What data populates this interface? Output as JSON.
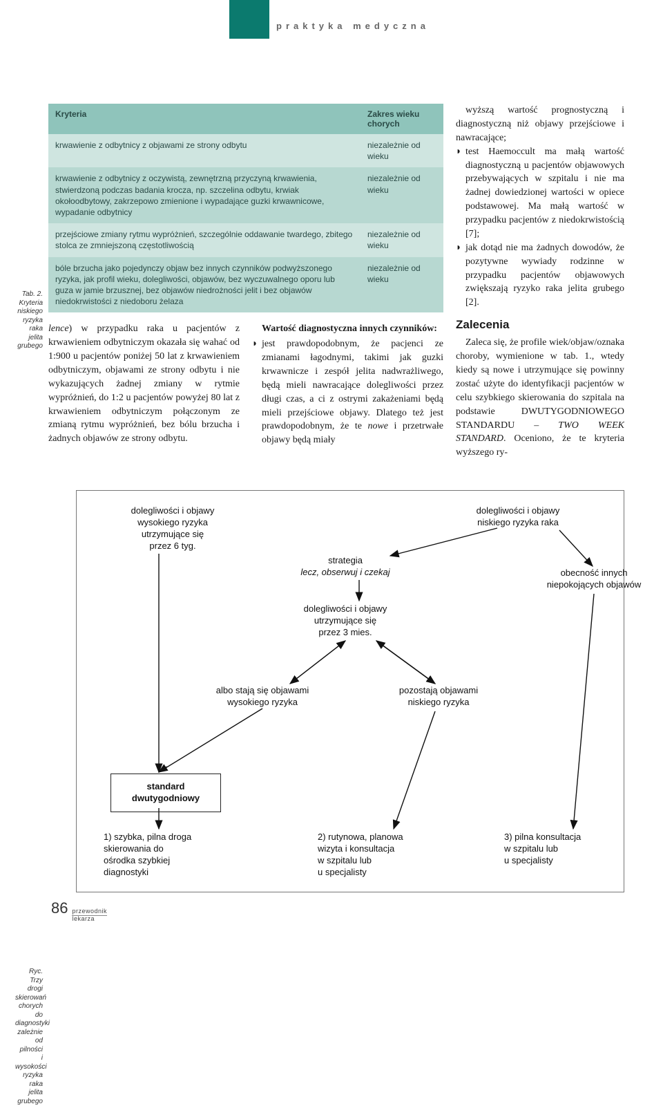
{
  "header": {
    "section_label": "praktyka medyczna"
  },
  "side_labels": {
    "tab2": "Tab. 2.\nKryteria\nniskiego\nryzyka\nraka\njelita\ngrubego",
    "ryc": "Ryc.\nTrzy drogi\nskierowań\nchorych do\ndiagnostyki\nzależnie\nod pilności\ni wysokości\nryzyka raka\njelita grubego"
  },
  "table": {
    "header_left": "Kryteria",
    "header_right": "Zakres wieku chorych",
    "value_common": "niezależnie od wieku",
    "rows": [
      "krwawienie z odbytnicy z objawami ze strony odbytu",
      "krwawienie z odbytnicy z oczywistą, zewnętrzną przyczyną krwawienia, stwierdzoną podczas badania krocza, np. szczelina odbytu, krwiak okołoodbytowy, zakrzepowo zmienione i wypadające guzki krwawnicowe, wypadanie odbytnicy",
      "przejściowe zmiany rytmu wypróżnień, szczególnie oddawanie twardego, zbitego stolca ze zmniejszoną częstotliwością",
      "bóle brzucha jako pojedynczy objaw bez innych czynników podwyższonego ryzyka, jak profil wieku, dolegliwości, objawów, bez wyczuwalnego oporu lub guza w jamie brzusznej, bez objawów niedrożności jelit i bez objawów niedokrwistości z niedoboru żelaza"
    ]
  },
  "cols": {
    "left": "lence) w przypadku raka u pacjentów z krwawieniem odbytniczym okazała się wahać od 1:900 u pacjentów poniżej 50 lat z krwawieniem odbytniczym, objawami ze strony odbytu i nie wykazujących żadnej zmiany w rytmie wypróżnień, do 1:2 u pacjentów powyżej 80 lat z krwawieniem odbytniczym połączonym ze zmianą rytmu wypróżnień, bez bólu brzucha i żadnych objawów ze strony odbytu.",
    "mid_head": "Wartość diagnostyczna innych czynników:",
    "mid_bullet": "jest prawdopodobnym, że pacjenci ze zmianami łagodnymi, takimi jak guzki krwawnicze i zespół jelita nadwrażliwego, będą mieli nawracające dolegliwości przez długi czas, a ci z ostrymi zakażeniami będą mieli przejściowe objawy. Dlatego też jest prawdopodobnym, że te nowe i przetrwałe objawy będą miały"
  },
  "side": {
    "para_top": "wyższą wartość prognostyczną i diagnostyczną niż objawy przejściowe i nawracające;",
    "b1": "test Haemoccult ma małą wartość diagnostyczną u pacjentów objawowych przebywających w szpitalu i nie ma żadnej dowiedzionej wartości w opiece podstawowej. Ma małą wartość w przypadku pacjentów z niedokrwistością [7];",
    "b2": "jak dotąd nie ma żadnych dowodów, że pozytywne wywiady rodzinne w przypadku pacjentów objawowych zwiększają ryzyko raka jelita grubego [2].",
    "h": "Zalecenia",
    "para2": "Zaleca się, że profile wiek/objaw/oznaka choroby, wymienione w tab. 1., wtedy kiedy są nowe i utrzymujące się powinny zostać użyte do identyfikacji pacjentów w celu szybkiego skierowania do szpitala na podstawie DWUTYGODNIOWEGO STANDARDU – TWO WEEK STANDARD. Oceniono, że te kryteria wyższego ry-"
  },
  "flow": {
    "n_hi": "dolegliwości i objawy\nwysokiego ryzyka\nutrzymujące się\nprzez 6 tyg.",
    "n_lo": "dolegliwości i objawy\nniskiego ryzyka raka",
    "n_strat": "strategia\nlecz, obserwuj i czekaj",
    "n_other": "obecność innych\nniepokojących objawów",
    "n_3m": "dolegliwości i objawy\nutrzymujące się\nprzez 3 mies.",
    "n_become_hi": "albo stają się objawami\nwysokiego ryzyka",
    "n_remain_lo": "pozostają objawami\nniskiego ryzyka",
    "n_std": "standard\ndwutygodniowy",
    "n_out1": "1) szybka, pilna droga\nskierowania do\nośrodka szybkiej\ndiagnostyki",
    "n_out2": "2) rutynowa, planowa\nwizyta i konsultacja\nw szpitalu lub\nu specjalisty",
    "n_out3": "3) pilna konsultacja\nw szpitalu lub\nu specjalisty"
  },
  "footer": {
    "page": "86",
    "t1": "przewodnik",
    "t2": "lekarza"
  }
}
